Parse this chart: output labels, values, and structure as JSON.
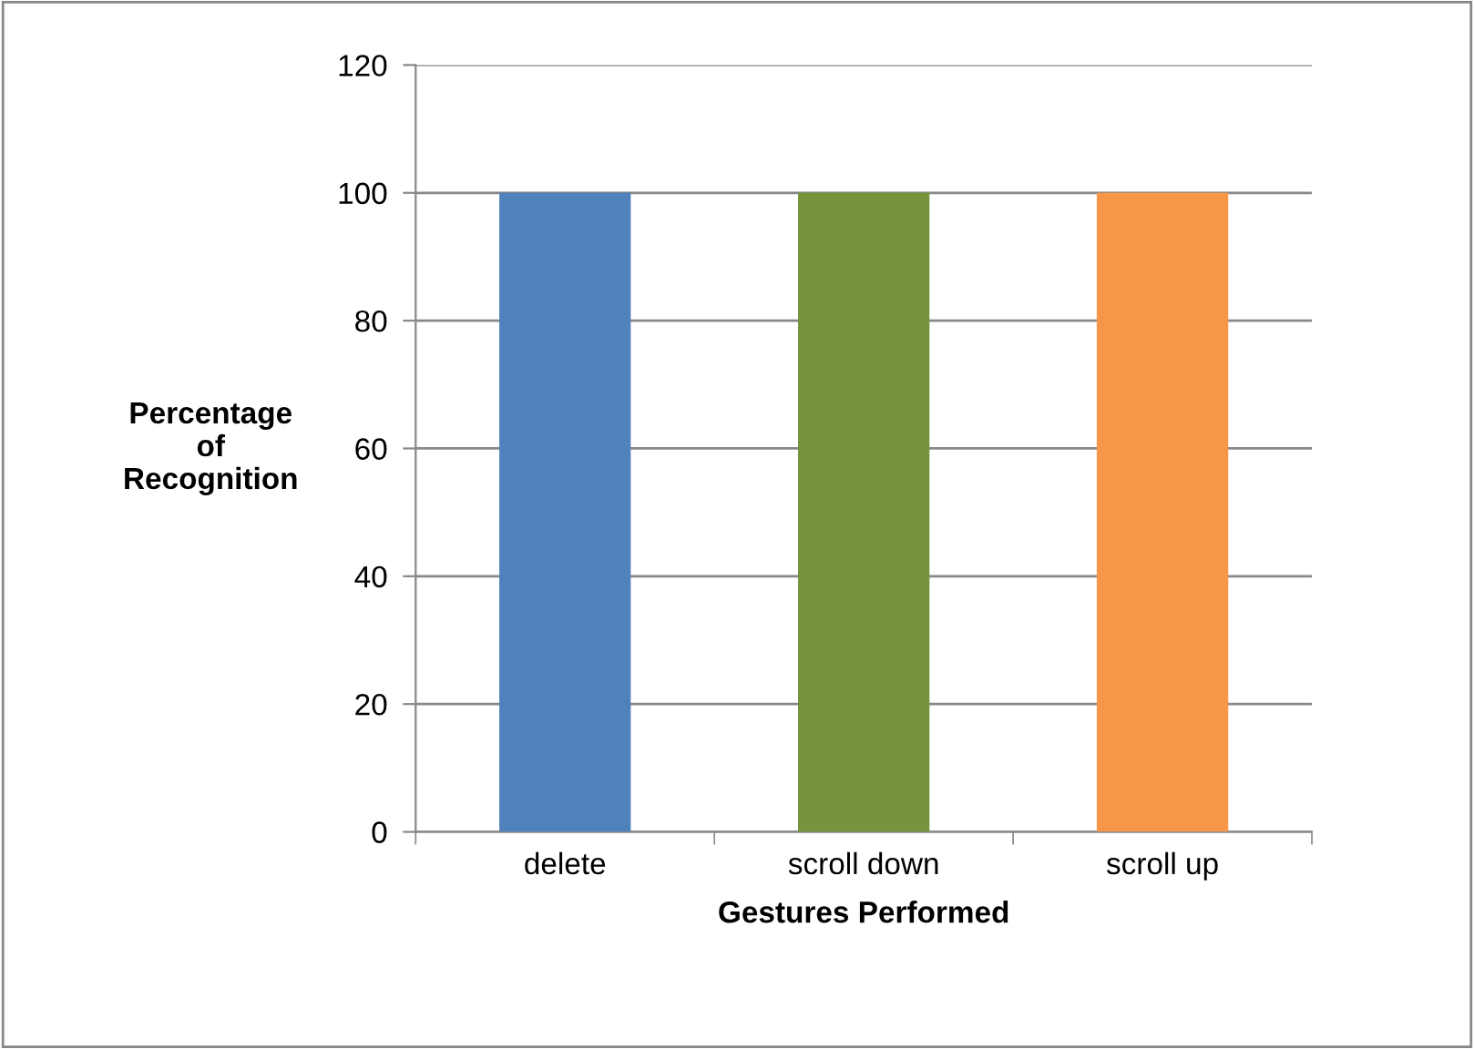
{
  "chart_data": {
    "type": "bar",
    "xlabel": "Gestures Performed",
    "ylabel": "Percentage\nof\nRecognition",
    "categories": [
      "delete",
      "scroll down",
      "scroll up"
    ],
    "values": [
      100,
      100,
      100
    ],
    "colors": [
      "#4f81bd",
      "#77933c",
      "#f79646"
    ],
    "ylim": [
      0,
      120
    ],
    "yticks": [
      0,
      20,
      40,
      60,
      80,
      100,
      120
    ],
    "grid": "y",
    "legend": false
  }
}
